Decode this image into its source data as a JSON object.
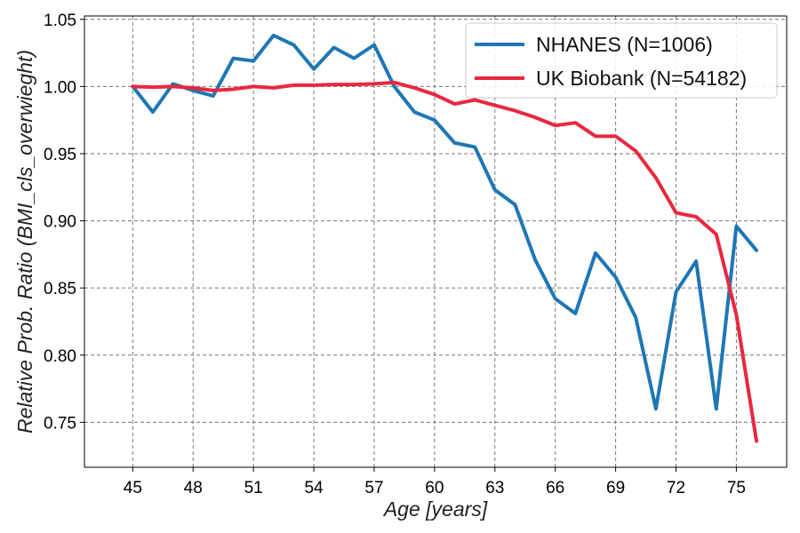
{
  "chart_data": {
    "type": "line",
    "xlabel": "Age [years]",
    "ylabel": "Relative Prob. Ratio (BMI_cls_overwieght)",
    "xlim": [
      42.6,
      77.5
    ],
    "ylim": [
      0.7165,
      1.0525
    ],
    "xticks": [
      45,
      48,
      51,
      54,
      57,
      60,
      63,
      66,
      69,
      72,
      75
    ],
    "yticks": [
      0.75,
      0.8,
      0.85,
      0.9,
      0.95,
      1.0,
      1.05
    ],
    "ytick_labels": [
      "0.75",
      "0.80",
      "0.85",
      "0.90",
      "0.95",
      "1.00",
      "1.05"
    ],
    "grid": true,
    "legend_position": "top-right",
    "x": [
      45,
      46,
      47,
      48,
      49,
      50,
      51,
      52,
      53,
      54,
      55,
      56,
      57,
      58,
      59,
      60,
      61,
      62,
      63,
      64,
      65,
      66,
      67,
      68,
      69,
      70,
      71,
      72,
      73,
      74,
      75,
      76
    ],
    "series": [
      {
        "name": "NHANES (N=1006)",
        "color": "#1f77b4",
        "values": [
          1.0,
          0.981,
          1.002,
          0.997,
          0.993,
          1.021,
          1.019,
          1.038,
          1.031,
          1.013,
          1.029,
          1.021,
          1.031,
          1.0,
          0.981,
          0.975,
          0.958,
          0.955,
          0.923,
          0.912,
          0.871,
          0.842,
          0.831,
          0.876,
          0.858,
          0.828,
          0.76,
          0.847,
          0.87,
          0.76,
          0.896,
          0.878
        ]
      },
      {
        "name": "UK Biobank (N=54182)",
        "color": "#e8283f",
        "values": [
          1.0,
          0.9995,
          1.0,
          0.999,
          0.997,
          0.998,
          1.0,
          0.999,
          1.001,
          1.001,
          1.0015,
          1.0015,
          1.002,
          1.003,
          0.999,
          0.994,
          0.987,
          0.99,
          0.986,
          0.982,
          0.977,
          0.971,
          0.973,
          0.963,
          0.963,
          0.952,
          0.932,
          0.906,
          0.903,
          0.89,
          0.83,
          0.736
        ]
      }
    ]
  }
}
